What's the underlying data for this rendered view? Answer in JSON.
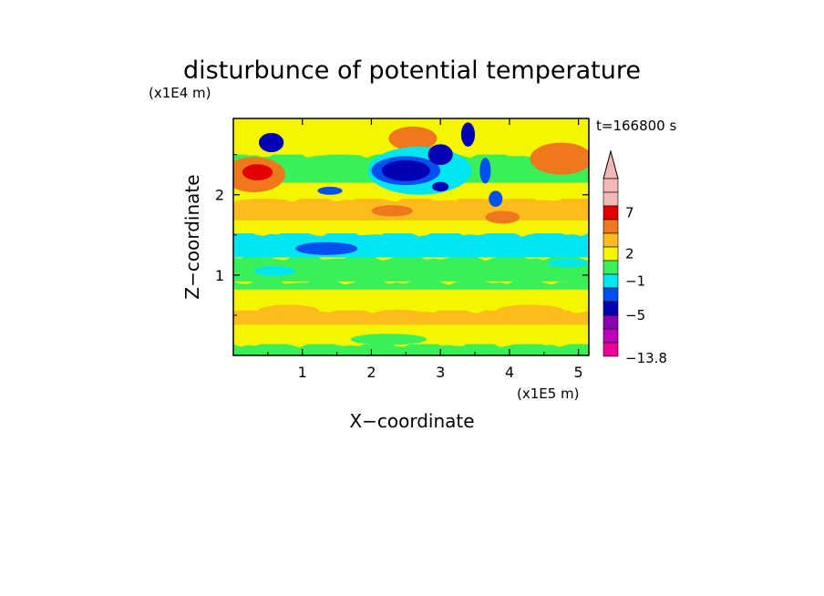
{
  "chart_data": {
    "type": "heatmap",
    "title": "disturbunce of potential temperature",
    "xlabel": "X−coordinate",
    "ylabel": "Z−coordinate",
    "x_unit": "(x1E5 m)",
    "y_unit": "(x1E4 m)",
    "time_label": "t=166800 s",
    "xlim": [
      0,
      5.15
    ],
    "ylim": [
      0,
      2.95
    ],
    "x_ticks": [
      1,
      2,
      3,
      4,
      5
    ],
    "y_ticks": [
      1,
      2
    ],
    "x_tick_labels": [
      "1",
      "2",
      "3",
      "4",
      "5"
    ],
    "y_tick_labels": [
      "1",
      "2"
    ],
    "colorbar": {
      "min_label": "−13.8",
      "tick_labels": [
        "7",
        "2",
        "−1",
        "−5"
      ],
      "levels": [
        {
          "color": "#f2b8b8"
        },
        {
          "color": "#f2b8b8"
        },
        {
          "color": "#e30000"
        },
        {
          "color": "#f0781c"
        },
        {
          "color": "#fbbd1b"
        },
        {
          "color": "#f5f500"
        },
        {
          "color": "#3af05a"
        },
        {
          "color": "#00e6f0"
        },
        {
          "color": "#0050f0"
        },
        {
          "color": "#0000b4"
        },
        {
          "color": "#8c00b4"
        },
        {
          "color": "#be00be"
        },
        {
          "color": "#eb0096"
        }
      ]
    },
    "bands": [
      {
        "z": [
          0.0,
          0.14
        ],
        "color": "#3af05a"
      },
      {
        "z": [
          0.14,
          0.38
        ],
        "color": "#f5f500"
      },
      {
        "z": [
          0.38,
          0.56
        ],
        "color": "#fbbd1b"
      },
      {
        "z": [
          0.56,
          0.82
        ],
        "color": "#f5f500"
      },
      {
        "z": [
          0.82,
          0.92
        ],
        "color": "#3af05a"
      },
      {
        "z": [
          0.92,
          1.22
        ],
        "color": "#3af05a"
      },
      {
        "z": [
          1.22,
          1.52
        ],
        "color": "#00e6f0"
      },
      {
        "z": [
          1.52,
          1.68
        ],
        "color": "#f5f500"
      },
      {
        "z": [
          1.68,
          1.95
        ],
        "color": "#fbbd1b"
      },
      {
        "z": [
          1.95,
          2.15
        ],
        "color": "#f5f500"
      },
      {
        "z": [
          2.15,
          2.5
        ],
        "color": "#3af05a"
      },
      {
        "z": [
          2.5,
          2.95
        ],
        "color": "#f5f500"
      }
    ],
    "blobs": [
      {
        "x": 0.3,
        "z": 2.25,
        "rx": 0.45,
        "rz": 0.22,
        "color": "#f0781c"
      },
      {
        "x": 0.35,
        "z": 2.28,
        "rx": 0.22,
        "rz": 0.1,
        "color": "#e30000"
      },
      {
        "x": 4.75,
        "z": 2.45,
        "rx": 0.45,
        "rz": 0.2,
        "color": "#f0781c"
      },
      {
        "x": 2.6,
        "z": 2.7,
        "rx": 0.35,
        "rz": 0.15,
        "color": "#f0781c"
      },
      {
        "x": 3.9,
        "z": 1.72,
        "rx": 0.25,
        "rz": 0.08,
        "color": "#f0781c"
      },
      {
        "x": 2.3,
        "z": 1.8,
        "rx": 0.3,
        "rz": 0.07,
        "color": "#f0781c"
      },
      {
        "x": 0.8,
        "z": 0.55,
        "rx": 0.45,
        "rz": 0.08,
        "color": "#fbbd1b"
      },
      {
        "x": 2.4,
        "z": 0.5,
        "rx": 0.4,
        "rz": 0.07,
        "color": "#fbbd1b"
      },
      {
        "x": 4.3,
        "z": 0.55,
        "rx": 0.5,
        "rz": 0.08,
        "color": "#fbbd1b"
      },
      {
        "x": 2.25,
        "z": 0.2,
        "rx": 0.55,
        "rz": 0.07,
        "color": "#3af05a"
      },
      {
        "x": 2.7,
        "z": 2.3,
        "rx": 0.75,
        "rz": 0.3,
        "color": "#00e6f0"
      },
      {
        "x": 2.5,
        "z": 2.3,
        "rx": 0.5,
        "rz": 0.18,
        "color": "#0050f0"
      },
      {
        "x": 2.5,
        "z": 2.3,
        "rx": 0.35,
        "rz": 0.13,
        "color": "#0000b4"
      },
      {
        "x": 3.0,
        "z": 2.5,
        "rx": 0.18,
        "rz": 0.13,
        "color": "#0000b4"
      },
      {
        "x": 3.4,
        "z": 2.75,
        "rx": 0.1,
        "rz": 0.15,
        "color": "#0000b4"
      },
      {
        "x": 3.65,
        "z": 2.3,
        "rx": 0.08,
        "rz": 0.16,
        "color": "#0050f0"
      },
      {
        "x": 3.8,
        "z": 1.95,
        "rx": 0.1,
        "rz": 0.1,
        "color": "#0050f0"
      },
      {
        "x": 3.0,
        "z": 2.1,
        "rx": 0.12,
        "rz": 0.06,
        "color": "#0000b4"
      },
      {
        "x": 0.55,
        "z": 2.65,
        "rx": 0.18,
        "rz": 0.12,
        "color": "#0000b4"
      },
      {
        "x": 1.4,
        "z": 2.05,
        "rx": 0.18,
        "rz": 0.05,
        "color": "#0050f0"
      },
      {
        "x": 1.35,
        "z": 1.33,
        "rx": 0.45,
        "rz": 0.08,
        "color": "#0050f0"
      },
      {
        "x": 4.85,
        "z": 1.15,
        "rx": 0.3,
        "rz": 0.05,
        "color": "#00e6f0"
      },
      {
        "x": 0.6,
        "z": 1.05,
        "rx": 0.3,
        "rz": 0.06,
        "color": "#00e6f0"
      }
    ]
  }
}
